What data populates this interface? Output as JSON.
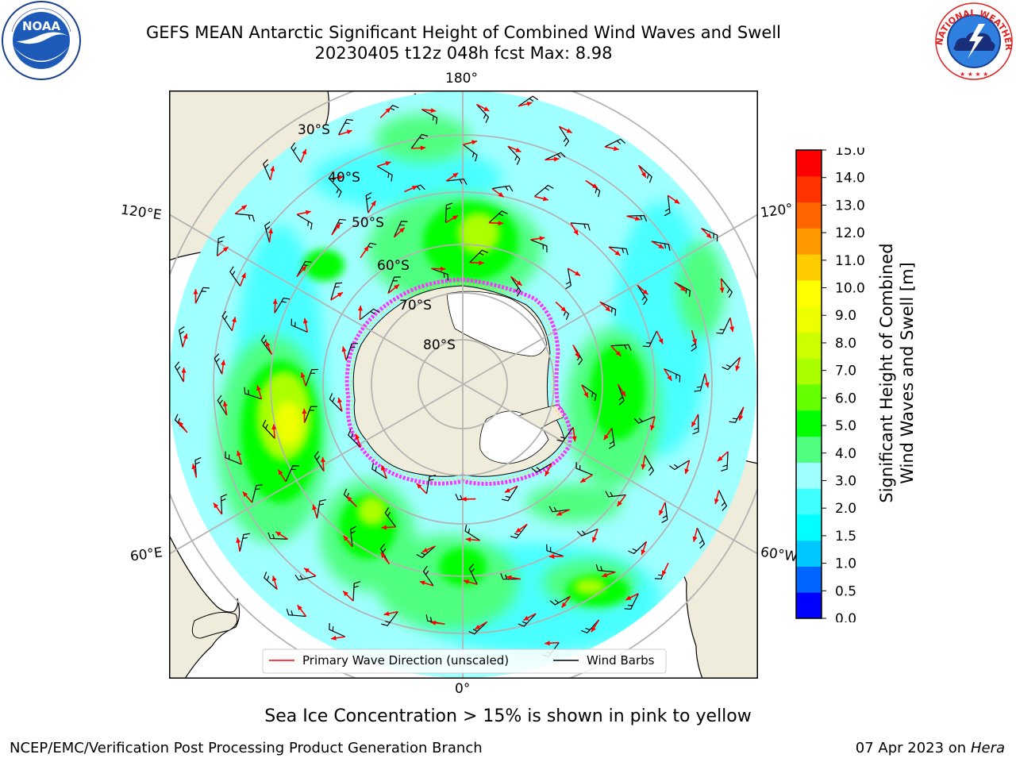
{
  "title": {
    "line1": "GEFS MEAN Antarctic Significant Height of Combined Wind Waves and Swell",
    "line2": "20230405 t12z 048h fcst   Max: 8.98"
  },
  "logos": {
    "left": {
      "name": "noaa-logo",
      "text": "NOAA",
      "ring_text": "NATIONAL OCEANIC AND ATMOSPHERIC ADMINISTRATION · U.S. DEPARTMENT OF COMMERCE"
    },
    "right": {
      "name": "nws-logo",
      "ring_text": "NATIONAL WEATHER SERVICE"
    }
  },
  "map": {
    "projection": "south-polar-stereographic",
    "lon_labels": {
      "top": "180°",
      "bottom": "0°",
      "left_upper": "120°E",
      "left_lower": "60°E",
      "right_upper": "120°",
      "right_lower": "60°W"
    },
    "lat_labels": [
      "30°S",
      "40°S",
      "50°S",
      "60°S",
      "70°S",
      "80°S"
    ],
    "colors": {
      "land": "#efecdc",
      "ice_land": "#ffffff",
      "ocean_base": "#a0ffff",
      "grid": "#b4b4b4",
      "sea_ice_edge": "#ff33ff",
      "arrow": "#ff0000",
      "barb": "#000000"
    }
  },
  "legend": {
    "items": [
      {
        "label": "Primary Wave Direction (unscaled)",
        "color": "#ff0000"
      },
      {
        "label": "Wind Barbs",
        "color": "#000000"
      }
    ]
  },
  "colorbar": {
    "title_line1": "Significant Height of Combined",
    "title_line2": "Wind Waves and Swell [m]",
    "ticks": [
      "0.0",
      "0.5",
      "1.0",
      "1.5",
      "2.0",
      "3.0",
      "4.0",
      "5.0",
      "6.0",
      "7.0",
      "8.0",
      "9.0",
      "10.0",
      "11.0",
      "12.0",
      "13.0",
      "14.0",
      "15.0"
    ],
    "colors": [
      "#0000ff",
      "#0064ff",
      "#00c8ff",
      "#00ffff",
      "#40ffff",
      "#a0ffff",
      "#50ff80",
      "#00ff00",
      "#64ff00",
      "#aaff00",
      "#ccff00",
      "#eeff00",
      "#ffff00",
      "#ffcc00",
      "#ff9900",
      "#ff6600",
      "#ff3300",
      "#ff0000"
    ]
  },
  "notes": {
    "sea_ice": "Sea Ice Concentration > 15% is shown in pink to yellow",
    "footer_left": "NCEP/EMC/Verification Post Processing Product Generation Branch",
    "footer_right_date": "07 Apr 2023 on ",
    "footer_right_host": "Hera"
  }
}
